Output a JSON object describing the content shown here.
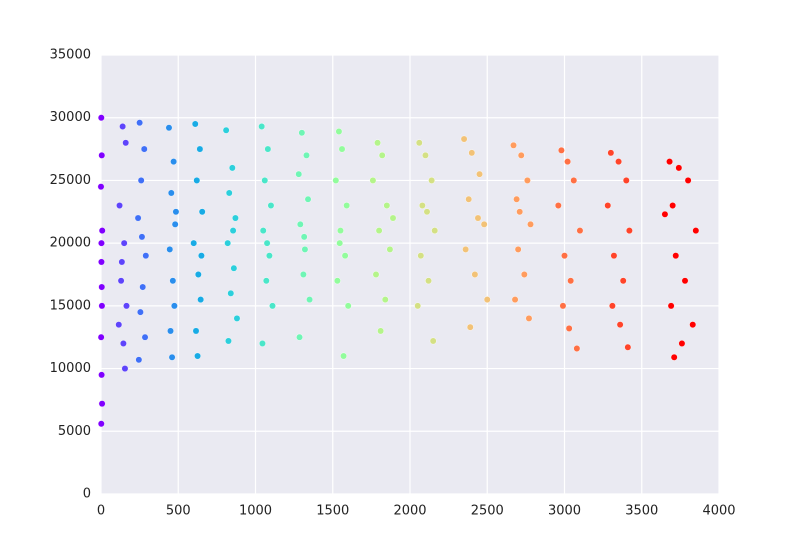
{
  "chart_data": {
    "type": "scatter",
    "xlim": [
      0,
      4000
    ],
    "xticks": [
      0,
      500,
      1000,
      1500,
      2000,
      2500,
      3000,
      3500,
      4000
    ],
    "ylim": [
      0,
      35000
    ],
    "yticks": [
      0,
      5000,
      10000,
      15000,
      20000,
      25000,
      30000,
      35000
    ],
    "grid": true,
    "series": [
      {
        "color": "#8000ff",
        "x": [
          2,
          5,
          0,
          8,
          3,
          6,
          1,
          4,
          7,
          2,
          5,
          3
        ],
        "values": [
          30000,
          27000,
          24500,
          21000,
          18500,
          15000,
          12500,
          9500,
          7200,
          5600,
          16500,
          20000
        ]
      },
      {
        "color": "#5e44fb",
        "x": [
          140,
          160,
          120,
          150,
          130,
          165,
          115,
          145,
          155,
          135
        ],
        "values": [
          29300,
          28000,
          23000,
          20000,
          17000,
          15000,
          13500,
          12000,
          10000,
          18500
        ]
      },
      {
        "color": "#4070f7",
        "x": [
          250,
          280,
          260,
          240,
          290,
          270,
          255,
          285,
          245,
          265
        ],
        "values": [
          29600,
          27500,
          25000,
          22000,
          19000,
          16500,
          14500,
          12500,
          10700,
          20500
        ]
      },
      {
        "color": "#2a8eed",
        "x": [
          440,
          470,
          455,
          480,
          445,
          465,
          475,
          450,
          460,
          485
        ],
        "values": [
          29200,
          26500,
          24000,
          21500,
          19500,
          17000,
          15000,
          13000,
          10900,
          22500
        ]
      },
      {
        "color": "#18abe5",
        "x": [
          610,
          640,
          620,
          655,
          600,
          630,
          645,
          615,
          625,
          650
        ],
        "values": [
          29500,
          27500,
          25000,
          22500,
          20000,
          17500,
          15500,
          13000,
          11000,
          19000
        ]
      },
      {
        "color": "#2ccfdc",
        "x": [
          810,
          850,
          830,
          870,
          820,
          860,
          840,
          880,
          825,
          855
        ],
        "values": [
          29000,
          26000,
          24000,
          22000,
          20000,
          18000,
          16000,
          14000,
          12200,
          21000
        ]
      },
      {
        "color": "#4ae6c9",
        "x": [
          1040,
          1080,
          1060,
          1100,
          1050,
          1090,
          1070,
          1110,
          1045,
          1075
        ],
        "values": [
          29300,
          27500,
          25000,
          23000,
          21000,
          19000,
          17000,
          15000,
          12000,
          20000
        ]
      },
      {
        "color": "#6ff5b5",
        "x": [
          1300,
          1330,
          1280,
          1340,
          1290,
          1320,
          1310,
          1350,
          1285,
          1315
        ],
        "values": [
          28800,
          27000,
          25500,
          23500,
          21500,
          19500,
          17500,
          15500,
          12500,
          20500
        ]
      },
      {
        "color": "#92fc9c",
        "x": [
          1540,
          1560,
          1520,
          1590,
          1550,
          1580,
          1530,
          1600,
          1570,
          1545
        ],
        "values": [
          28900,
          27500,
          25000,
          23000,
          21000,
          19000,
          17000,
          15000,
          11000,
          20000
        ]
      },
      {
        "color": "#b4f48a",
        "x": [
          1790,
          1820,
          1760,
          1850,
          1800,
          1870,
          1780,
          1840,
          1810,
          1890
        ],
        "values": [
          28000,
          27000,
          25000,
          23000,
          21000,
          19500,
          17500,
          15500,
          13000,
          22000
        ]
      },
      {
        "color": "#d4e084",
        "x": [
          2060,
          2100,
          2140,
          2080,
          2160,
          2070,
          2120,
          2050,
          2150,
          2110
        ],
        "values": [
          28000,
          27000,
          25000,
          23000,
          21000,
          19000,
          17000,
          15000,
          12200,
          22500
        ]
      },
      {
        "color": "#f2c277",
        "x": [
          2350,
          2400,
          2450,
          2380,
          2480,
          2360,
          2420,
          2500,
          2390,
          2440
        ],
        "values": [
          28300,
          27200,
          25500,
          23500,
          21500,
          19500,
          17500,
          15500,
          13300,
          22000
        ]
      },
      {
        "color": "#ff9c5e",
        "x": [
          2670,
          2720,
          2760,
          2690,
          2780,
          2700,
          2740,
          2680,
          2770,
          2710
        ],
        "values": [
          27800,
          27000,
          25000,
          23500,
          21500,
          19500,
          17500,
          15500,
          14000,
          22500
        ]
      },
      {
        "color": "#ff7044",
        "x": [
          2980,
          3020,
          3060,
          2960,
          3100,
          3000,
          3040,
          2990,
          3080,
          3030
        ],
        "values": [
          27400,
          26500,
          25000,
          23000,
          21000,
          19000,
          17000,
          15000,
          11600,
          13200
        ]
      },
      {
        "color": "#ff442a",
        "x": [
          3300,
          3350,
          3400,
          3280,
          3420,
          3320,
          3380,
          3310,
          3410,
          3360
        ],
        "values": [
          27200,
          26500,
          25000,
          23000,
          21000,
          19000,
          17000,
          15000,
          11700,
          13500
        ]
      },
      {
        "color": "#ff0000",
        "x": [
          3680,
          3740,
          3800,
          3700,
          3850,
          3720,
          3780,
          3690,
          3830,
          3760,
          3650,
          3710
        ],
        "values": [
          26500,
          26000,
          25000,
          23000,
          21000,
          19000,
          17000,
          15000,
          13500,
          12000,
          22300,
          10900
        ]
      }
    ]
  }
}
